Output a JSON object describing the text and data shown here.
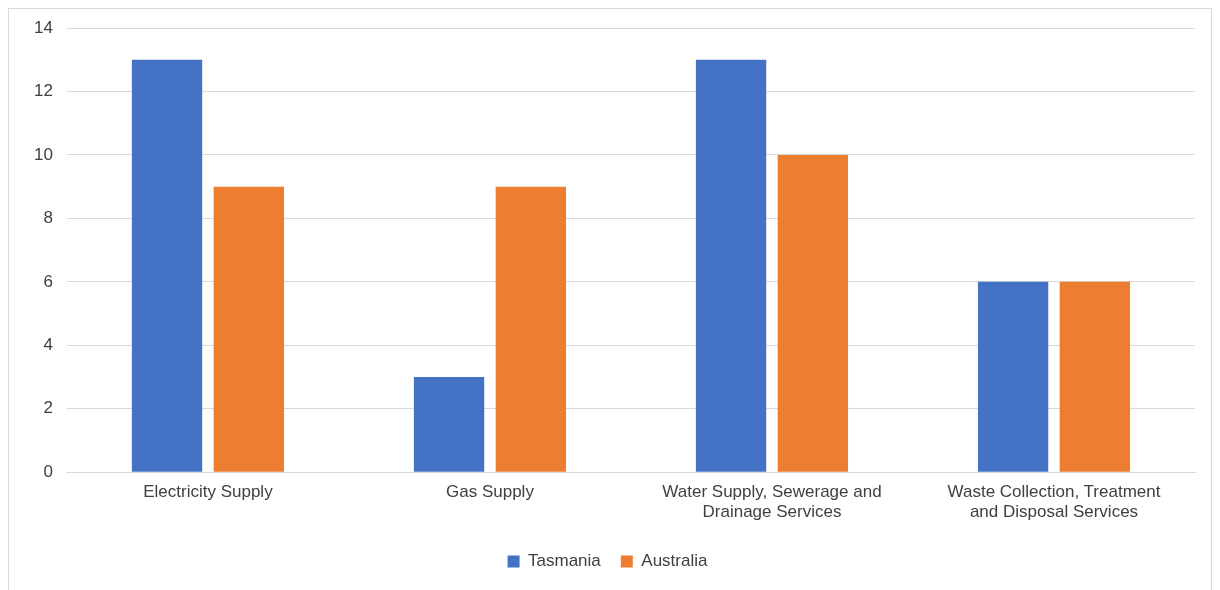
{
  "chart_data": {
    "type": "bar",
    "categories": [
      "Electricity Supply",
      "Gas Supply",
      "Water Supply, Sewerage and Drainage Services",
      "Waste Collection, Treatment and Disposal Services"
    ],
    "series": [
      {
        "name": "Tasmania",
        "color": "#4472c4",
        "values": [
          13,
          3,
          13,
          6
        ]
      },
      {
        "name": "Australia",
        "color": "#ed7d31",
        "values": [
          9,
          9,
          10,
          6
        ]
      }
    ],
    "ylim": [
      0,
      14
    ],
    "yticks": [
      0,
      2,
      4,
      6,
      8,
      10,
      12,
      14
    ],
    "grid": "y",
    "legend": "bottom"
  }
}
